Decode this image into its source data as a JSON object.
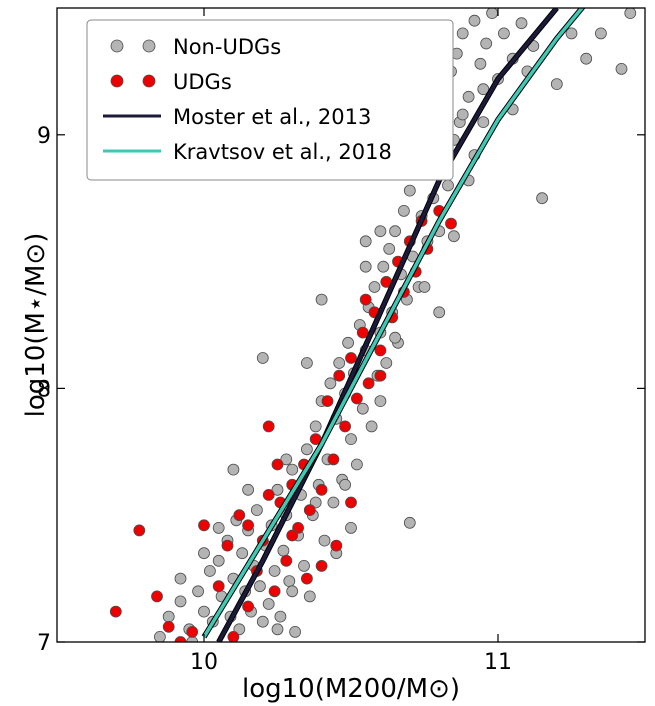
{
  "chart_data": {
    "type": "scatter",
    "xlabel": "log10(M200/M⊙)",
    "ylabel": "log10(M⋆/M⊙)",
    "xlim": [
      9.5,
      11.5
    ],
    "ylim": [
      7,
      9.5
    ],
    "xticks": [
      10,
      11
    ],
    "yticks": [
      7,
      8,
      9
    ],
    "legend_position": "top-left",
    "series": [
      {
        "name": "Non-UDGs",
        "kind": "points",
        "color": "#b4b4b4",
        "points": [
          [
            9.85,
            7.02
          ],
          [
            9.88,
            7.1
          ],
          [
            9.92,
            7.16
          ],
          [
            9.95,
            7.05
          ],
          [
            9.98,
            7.2
          ],
          [
            10.0,
            7.12
          ],
          [
            10.02,
            7.28
          ],
          [
            10.03,
            7.08
          ],
          [
            10.05,
            7.32
          ],
          [
            10.06,
            7.18
          ],
          [
            10.08,
            7.4
          ],
          [
            10.09,
            7.1
          ],
          [
            10.1,
            7.25
          ],
          [
            10.11,
            7.48
          ],
          [
            10.12,
            7.05
          ],
          [
            10.13,
            7.35
          ],
          [
            10.14,
            7.2
          ],
          [
            10.15,
            7.44
          ],
          [
            10.16,
            7.12
          ],
          [
            10.17,
            7.3
          ],
          [
            10.18,
            7.52
          ],
          [
            10.19,
            7.22
          ],
          [
            10.2,
            7.08
          ],
          [
            10.21,
            7.38
          ],
          [
            10.22,
            7.15
          ],
          [
            10.23,
            7.46
          ],
          [
            10.24,
            7.28
          ],
          [
            10.25,
            7.6
          ],
          [
            10.26,
            7.1
          ],
          [
            10.27,
            7.36
          ],
          [
            10.28,
            7.5
          ],
          [
            10.29,
            7.24
          ],
          [
            10.3,
            7.68
          ],
          [
            10.31,
            7.04
          ],
          [
            10.32,
            7.42
          ],
          [
            10.33,
            7.58
          ],
          [
            10.34,
            7.3
          ],
          [
            10.35,
            7.76
          ],
          [
            10.36,
            7.18
          ],
          [
            10.37,
            7.5
          ],
          [
            10.38,
            7.85
          ],
          [
            10.39,
            7.62
          ],
          [
            10.4,
            7.95
          ],
          [
            10.41,
            7.4
          ],
          [
            10.42,
            7.72
          ],
          [
            10.43,
            8.02
          ],
          [
            10.44,
            7.55
          ],
          [
            10.45,
            7.88
          ],
          [
            10.46,
            8.1
          ],
          [
            10.47,
            7.64
          ],
          [
            10.48,
            7.98
          ],
          [
            10.49,
            8.18
          ],
          [
            10.5,
            7.8
          ],
          [
            10.51,
            8.06
          ],
          [
            10.52,
            7.7
          ],
          [
            10.53,
            8.25
          ],
          [
            10.54,
            7.92
          ],
          [
            10.55,
            8.15
          ],
          [
            10.56,
            8.32
          ],
          [
            10.57,
            7.85
          ],
          [
            10.58,
            8.4
          ],
          [
            10.59,
            8.05
          ],
          [
            10.6,
            8.22
          ],
          [
            10.61,
            8.48
          ],
          [
            10.62,
            8.1
          ],
          [
            10.63,
            8.55
          ],
          [
            10.64,
            8.3
          ],
          [
            10.65,
            8.62
          ],
          [
            10.66,
            8.18
          ],
          [
            10.67,
            8.45
          ],
          [
            10.68,
            8.7
          ],
          [
            10.69,
            8.35
          ],
          [
            10.7,
            8.78
          ],
          [
            10.71,
            8.52
          ],
          [
            10.72,
            8.86
          ],
          [
            10.73,
            8.4
          ],
          [
            10.74,
            8.68
          ],
          [
            10.75,
            8.95
          ],
          [
            10.76,
            8.58
          ],
          [
            10.77,
            9.02
          ],
          [
            10.78,
            8.75
          ],
          [
            10.79,
            9.1
          ],
          [
            10.8,
            8.62
          ],
          [
            10.81,
            8.9
          ],
          [
            10.82,
            9.18
          ],
          [
            10.83,
            8.8
          ],
          [
            10.84,
            9.25
          ],
          [
            10.85,
            8.98
          ],
          [
            10.86,
            9.32
          ],
          [
            10.87,
            9.05
          ],
          [
            10.88,
            9.4
          ],
          [
            10.9,
            9.15
          ],
          [
            10.92,
            9.45
          ],
          [
            10.94,
            9.28
          ],
          [
            10.96,
            9.36
          ],
          [
            10.98,
            9.48
          ],
          [
            11.0,
            9.22
          ],
          [
            11.02,
            9.4
          ],
          [
            11.05,
            9.3
          ],
          [
            11.08,
            9.44
          ],
          [
            11.12,
            9.35
          ],
          [
            11.15,
            8.75
          ],
          [
            11.2,
            9.2
          ],
          [
            11.25,
            9.4
          ],
          [
            11.3,
            9.3
          ],
          [
            11.35,
            9.4
          ],
          [
            11.42,
            9.26
          ],
          [
            11.45,
            9.48
          ],
          [
            10.2,
            8.12
          ],
          [
            10.1,
            7.68
          ],
          [
            10.05,
            7.45
          ],
          [
            10.55,
            8.48
          ],
          [
            10.4,
            8.35
          ],
          [
            10.35,
            8.1
          ],
          [
            10.7,
            7.47
          ],
          [
            10.8,
            8.3
          ],
          [
            10.65,
            8.2
          ],
          [
            10.5,
            7.45
          ],
          [
            10.45,
            7.35
          ],
          [
            10.3,
            7.2
          ],
          [
            10.25,
            7.05
          ],
          [
            10.0,
            7.35
          ],
          [
            9.92,
            7.25
          ],
          [
            9.96,
            7.0
          ],
          [
            10.15,
            7.6
          ],
          [
            10.28,
            7.72
          ],
          [
            10.38,
            7.55
          ],
          [
            10.48,
            7.62
          ],
          [
            10.6,
            7.95
          ],
          [
            10.75,
            8.4
          ],
          [
            10.85,
            8.6
          ],
          [
            10.9,
            8.82
          ],
          [
            10.95,
            9.05
          ],
          [
            11.05,
            9.1
          ],
          [
            11.1,
            9.25
          ],
          [
            10.82,
            9.35
          ],
          [
            10.88,
            9.08
          ],
          [
            10.92,
            8.92
          ],
          [
            10.6,
            8.62
          ],
          [
            10.55,
            8.58
          ],
          [
            10.62,
            8.85
          ],
          [
            10.7,
            9.2
          ],
          [
            10.78,
            9.05
          ],
          [
            10.95,
            9.18
          ]
        ]
      },
      {
        "name": "UDGs",
        "kind": "points",
        "color": "#ee0000",
        "points": [
          [
            9.7,
            7.12
          ],
          [
            9.78,
            7.44
          ],
          [
            9.84,
            7.18
          ],
          [
            9.88,
            7.06
          ],
          [
            9.92,
            7.0
          ],
          [
            9.96,
            7.04
          ],
          [
            10.0,
            7.46
          ],
          [
            10.05,
            7.22
          ],
          [
            10.08,
            7.38
          ],
          [
            10.1,
            7.02
          ],
          [
            10.12,
            7.5
          ],
          [
            10.15,
            7.14
          ],
          [
            10.18,
            7.28
          ],
          [
            10.2,
            7.4
          ],
          [
            10.22,
            7.85
          ],
          [
            10.24,
            7.2
          ],
          [
            10.26,
            7.55
          ],
          [
            10.28,
            7.32
          ],
          [
            10.3,
            7.62
          ],
          [
            10.32,
            7.45
          ],
          [
            10.34,
            7.7
          ],
          [
            10.35,
            7.25
          ],
          [
            10.36,
            7.52
          ],
          [
            10.38,
            7.8
          ],
          [
            10.4,
            7.6
          ],
          [
            10.42,
            7.95
          ],
          [
            10.44,
            7.72
          ],
          [
            10.46,
            8.05
          ],
          [
            10.48,
            7.85
          ],
          [
            10.5,
            8.12
          ],
          [
            10.52,
            7.96
          ],
          [
            10.54,
            8.22
          ],
          [
            10.56,
            8.02
          ],
          [
            10.58,
            8.3
          ],
          [
            10.6,
            8.15
          ],
          [
            10.62,
            8.42
          ],
          [
            10.64,
            8.28
          ],
          [
            10.66,
            8.5
          ],
          [
            10.68,
            8.38
          ],
          [
            10.7,
            8.58
          ],
          [
            10.72,
            8.46
          ],
          [
            10.74,
            8.66
          ],
          [
            10.76,
            8.55
          ],
          [
            10.8,
            8.7
          ],
          [
            10.84,
            8.65
          ],
          [
            10.22,
            7.58
          ],
          [
            10.3,
            7.42
          ],
          [
            10.45,
            7.38
          ],
          [
            10.5,
            7.55
          ],
          [
            10.4,
            7.3
          ],
          [
            10.55,
            8.35
          ],
          [
            10.6,
            8.05
          ],
          [
            10.25,
            7.7
          ],
          [
            10.15,
            7.46
          ]
        ]
      },
      {
        "name": "Moster et al., 2013",
        "kind": "line",
        "color": "#1c1a3a",
        "points": [
          [
            10.05,
            7.0
          ],
          [
            10.2,
            7.32
          ],
          [
            10.4,
            7.78
          ],
          [
            10.6,
            8.3
          ],
          [
            10.8,
            8.82
          ],
          [
            11.0,
            9.22
          ],
          [
            11.2,
            9.5
          ]
        ]
      },
      {
        "name": "Kravtsov et al., 2018",
        "kind": "line",
        "color": "#3ec9b4",
        "points": [
          [
            10.0,
            7.02
          ],
          [
            10.2,
            7.4
          ],
          [
            10.4,
            7.78
          ],
          [
            10.6,
            8.22
          ],
          [
            10.8,
            8.66
          ],
          [
            11.0,
            9.06
          ],
          [
            11.2,
            9.38
          ],
          [
            11.3,
            9.52
          ]
        ]
      }
    ]
  }
}
